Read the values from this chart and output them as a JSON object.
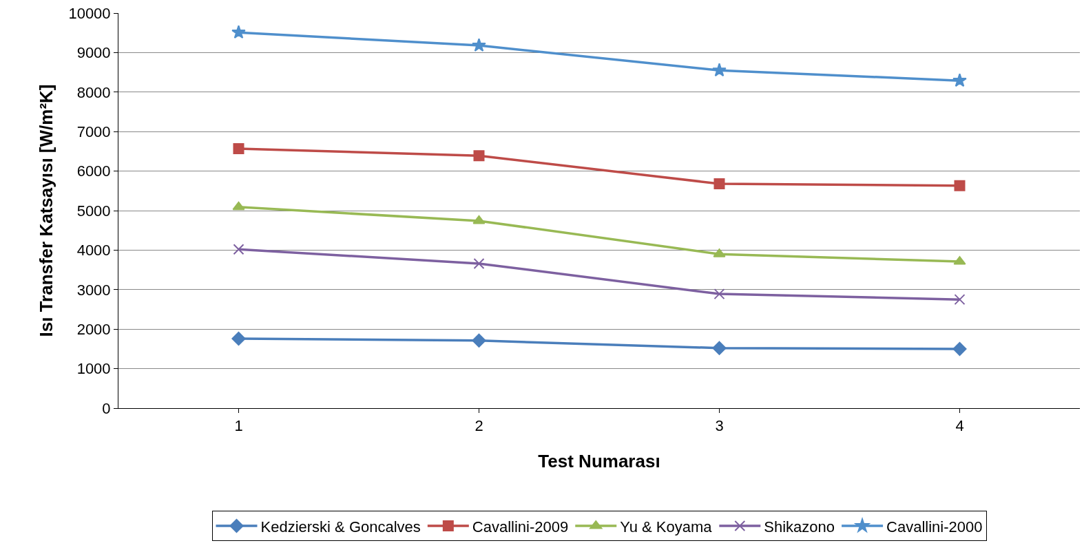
{
  "chart_data": {
    "type": "line",
    "xlabel": "Test Numarası",
    "ylabel": "Isı Transfer Katsayısı [W/m²K]",
    "categories": [
      "1",
      "2",
      "3",
      "4"
    ],
    "series": [
      {
        "name": "Kedzierski & Goncalves",
        "color": "#4a7ebb",
        "marker": "diamond",
        "values": [
          1760,
          1710,
          1520,
          1500
        ]
      },
      {
        "name": "Cavallini-2009",
        "color": "#be4b48",
        "marker": "square",
        "values": [
          6570,
          6390,
          5680,
          5630
        ]
      },
      {
        "name": "Yu & Koyama",
        "color": "#98b954",
        "marker": "triangle",
        "values": [
          5090,
          4740,
          3900,
          3710
        ]
      },
      {
        "name": "Shikazono",
        "color": "#7d60a0",
        "marker": "cross",
        "values": [
          4020,
          3660,
          2890,
          2750
        ]
      },
      {
        "name": "Cavallini-2000",
        "color": "#4f8fcc",
        "marker": "star",
        "values": [
          9510,
          9180,
          8550,
          8290
        ]
      }
    ],
    "ylim": [
      0,
      10000
    ],
    "yticks": [
      0,
      1000,
      2000,
      3000,
      4000,
      5000,
      6000,
      7000,
      8000,
      9000,
      10000
    ],
    "grid": "y",
    "legend": "bottom",
    "line_style": "solid"
  }
}
